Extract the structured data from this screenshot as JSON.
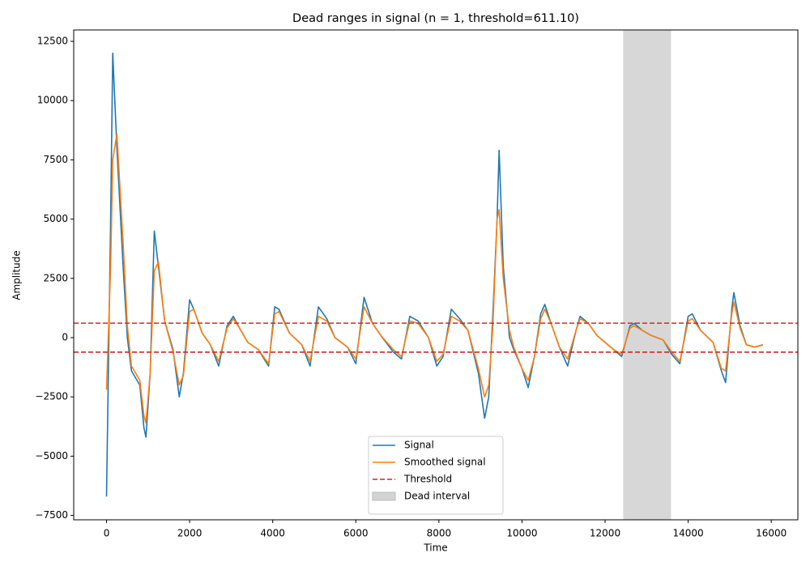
{
  "chart_data": {
    "type": "line",
    "title": "Dead ranges in signal (n = 1, threshold=611.10)",
    "x_label": "Time",
    "y_label": "Amplitude",
    "x": [
      0,
      100,
      150,
      250,
      400,
      500,
      600,
      800,
      900,
      950,
      1050,
      1150,
      1250,
      1400,
      1600,
      1750,
      1850,
      2000,
      2100,
      2300,
      2500,
      2700,
      2900,
      3050,
      3200,
      3400,
      3650,
      3900,
      4050,
      4150,
      4400,
      4700,
      4900,
      5100,
      5300,
      5500,
      5800,
      6000,
      6200,
      6400,
      6600,
      6900,
      7100,
      7300,
      7500,
      7750,
      7950,
      8100,
      8300,
      8500,
      8700,
      8950,
      9100,
      9200,
      9300,
      9400,
      9450,
      9550,
      9700,
      9800,
      10000,
      10150,
      10300,
      10450,
      10550,
      10700,
      10900,
      11100,
      11300,
      11400,
      11600,
      11800,
      12000,
      12200,
      12400,
      12600,
      12700,
      12900,
      13100,
      13400,
      13600,
      13800,
      14000,
      14100,
      14300,
      14600,
      14800,
      14900,
      15050,
      15100,
      15250,
      15400,
      15600,
      15800
    ],
    "series": [
      {
        "name": "Signal",
        "color": "#1f77b4",
        "values": [
          -6700,
          5000,
          12000,
          8000,
          3000,
          0,
          -1400,
          -2000,
          -3800,
          -4200,
          -1500,
          4500,
          3000,
          700,
          -500,
          -2500,
          -1500,
          1600,
          1200,
          200,
          -300,
          -1200,
          500,
          900,
          400,
          -200,
          -500,
          -1200,
          1300,
          1200,
          200,
          -300,
          -1200,
          1300,
          800,
          0,
          -400,
          -1100,
          1700,
          600,
          100,
          -600,
          -900,
          900,
          700,
          0,
          -1200,
          -800,
          1200,
          800,
          300,
          -1500,
          -3400,
          -2500,
          1000,
          5000,
          7900,
          3000,
          0,
          -500,
          -1300,
          -2100,
          -800,
          1000,
          1400,
          600,
          -400,
          -1200,
          300,
          900,
          600,
          100,
          -200,
          -500,
          -800,
          500,
          600,
          300,
          100,
          -100,
          -700,
          -1100,
          900,
          1000,
          300,
          -200,
          -1400,
          -1900,
          1200,
          1900,
          500,
          -300,
          -400,
          -300
        ]
      },
      {
        "name": "Smoothed signal",
        "color": "#ff7f0e",
        "values": [
          -2200,
          3000,
          7500,
          8600,
          4000,
          500,
          -1200,
          -1800,
          -3300,
          -3600,
          -1500,
          2800,
          3200,
          700,
          -600,
          -2000,
          -1600,
          1100,
          1200,
          200,
          -300,
          -1000,
          400,
          800,
          400,
          -200,
          -500,
          -1100,
          1000,
          1100,
          200,
          -300,
          -1000,
          900,
          700,
          0,
          -400,
          -900,
          1300,
          600,
          100,
          -500,
          -800,
          700,
          600,
          0,
          -1000,
          -700,
          900,
          700,
          300,
          -1300,
          -2500,
          -2000,
          500,
          5000,
          5400,
          2500,
          300,
          -400,
          -1300,
          -1800,
          -800,
          800,
          1200,
          600,
          -400,
          -900,
          300,
          800,
          600,
          100,
          -200,
          -500,
          -700,
          400,
          500,
          300,
          100,
          -100,
          -600,
          -1000,
          700,
          800,
          300,
          -200,
          -1300,
          -1400,
          1000,
          1500,
          400,
          -300,
          -400,
          -300
        ]
      }
    ],
    "threshold": {
      "name": "Threshold",
      "color": "#d62728",
      "values": [
        611.1,
        -611.1
      ]
    },
    "span": {
      "name": "Dead interval",
      "color": "#d3d3d3",
      "x": [
        12436,
        13587
      ]
    },
    "xlim": [
      -790,
      16640
    ],
    "ylim": [
      -7685,
      12980
    ],
    "xticks": [
      0,
      2000,
      4000,
      6000,
      8000,
      10000,
      12000,
      14000,
      16000
    ],
    "yticks": [
      {
        "value": -7500,
        "label": "−7500"
      },
      {
        "value": -5000,
        "label": "−5000"
      },
      {
        "value": -2500,
        "label": "−2500"
      },
      0,
      2500,
      5000,
      7500,
      10000,
      12500
    ],
    "legend": "lower center"
  }
}
